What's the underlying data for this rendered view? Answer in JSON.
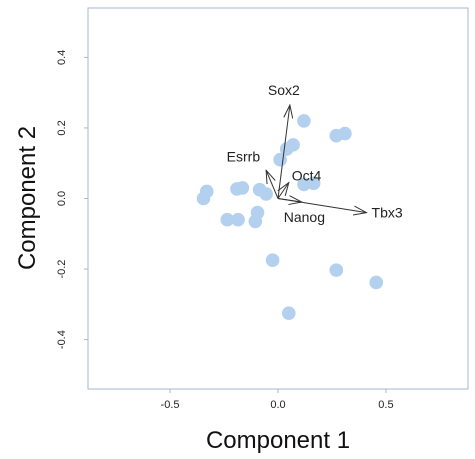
{
  "chart_data": {
    "type": "scatter",
    "title": "",
    "xlabel": "Component 1",
    "ylabel": "Component 2",
    "xlim": [
      -0.88,
      0.88
    ],
    "ylim": [
      -0.54,
      0.54
    ],
    "x_ticks": [
      -0.5,
      0.0,
      0.5
    ],
    "x_tick_labels": [
      "-0.5",
      "0.0",
      "0.5"
    ],
    "y_ticks": [
      -0.4,
      -0.2,
      0.0,
      0.2,
      0.4
    ],
    "y_tick_labels": [
      "-0.4",
      "-0.2",
      "0.0",
      "0.2",
      "0.4"
    ],
    "grid": false,
    "legend": "none",
    "point_color": "#b3d1ef",
    "arrow_color": "#333333",
    "frame_color": "#a7b9cc",
    "points": [
      {
        "x": 0.12,
        "y": 0.22
      },
      {
        "x": 0.27,
        "y": 0.178
      },
      {
        "x": 0.31,
        "y": 0.184
      },
      {
        "x": 0.07,
        "y": 0.152
      },
      {
        "x": 0.04,
        "y": 0.14
      },
      {
        "x": 0.01,
        "y": 0.11
      },
      {
        "x": 0.12,
        "y": 0.04
      },
      {
        "x": 0.165,
        "y": 0.043
      },
      {
        "x": -0.33,
        "y": 0.02
      },
      {
        "x": -0.345,
        "y": 0.0
      },
      {
        "x": -0.19,
        "y": 0.027
      },
      {
        "x": -0.165,
        "y": 0.03
      },
      {
        "x": -0.085,
        "y": 0.025
      },
      {
        "x": -0.055,
        "y": 0.013
      },
      {
        "x": -0.095,
        "y": -0.04
      },
      {
        "x": -0.105,
        "y": -0.065
      },
      {
        "x": -0.235,
        "y": -0.06
      },
      {
        "x": -0.185,
        "y": -0.06
      },
      {
        "x": -0.025,
        "y": -0.175
      },
      {
        "x": 0.27,
        "y": -0.203
      },
      {
        "x": 0.455,
        "y": -0.238
      },
      {
        "x": 0.05,
        "y": -0.325
      }
    ],
    "loadings": [
      {
        "name": "Sox2",
        "x": 0.055,
        "y": 0.265
      },
      {
        "name": "Esrrb",
        "x": -0.055,
        "y": 0.08
      },
      {
        "name": "Oct4",
        "x": 0.05,
        "y": 0.045
      },
      {
        "name": "Nanog",
        "x": 0.11,
        "y": -0.01
      },
      {
        "name": "Tbx3",
        "x": 0.41,
        "y": -0.04
      }
    ]
  }
}
